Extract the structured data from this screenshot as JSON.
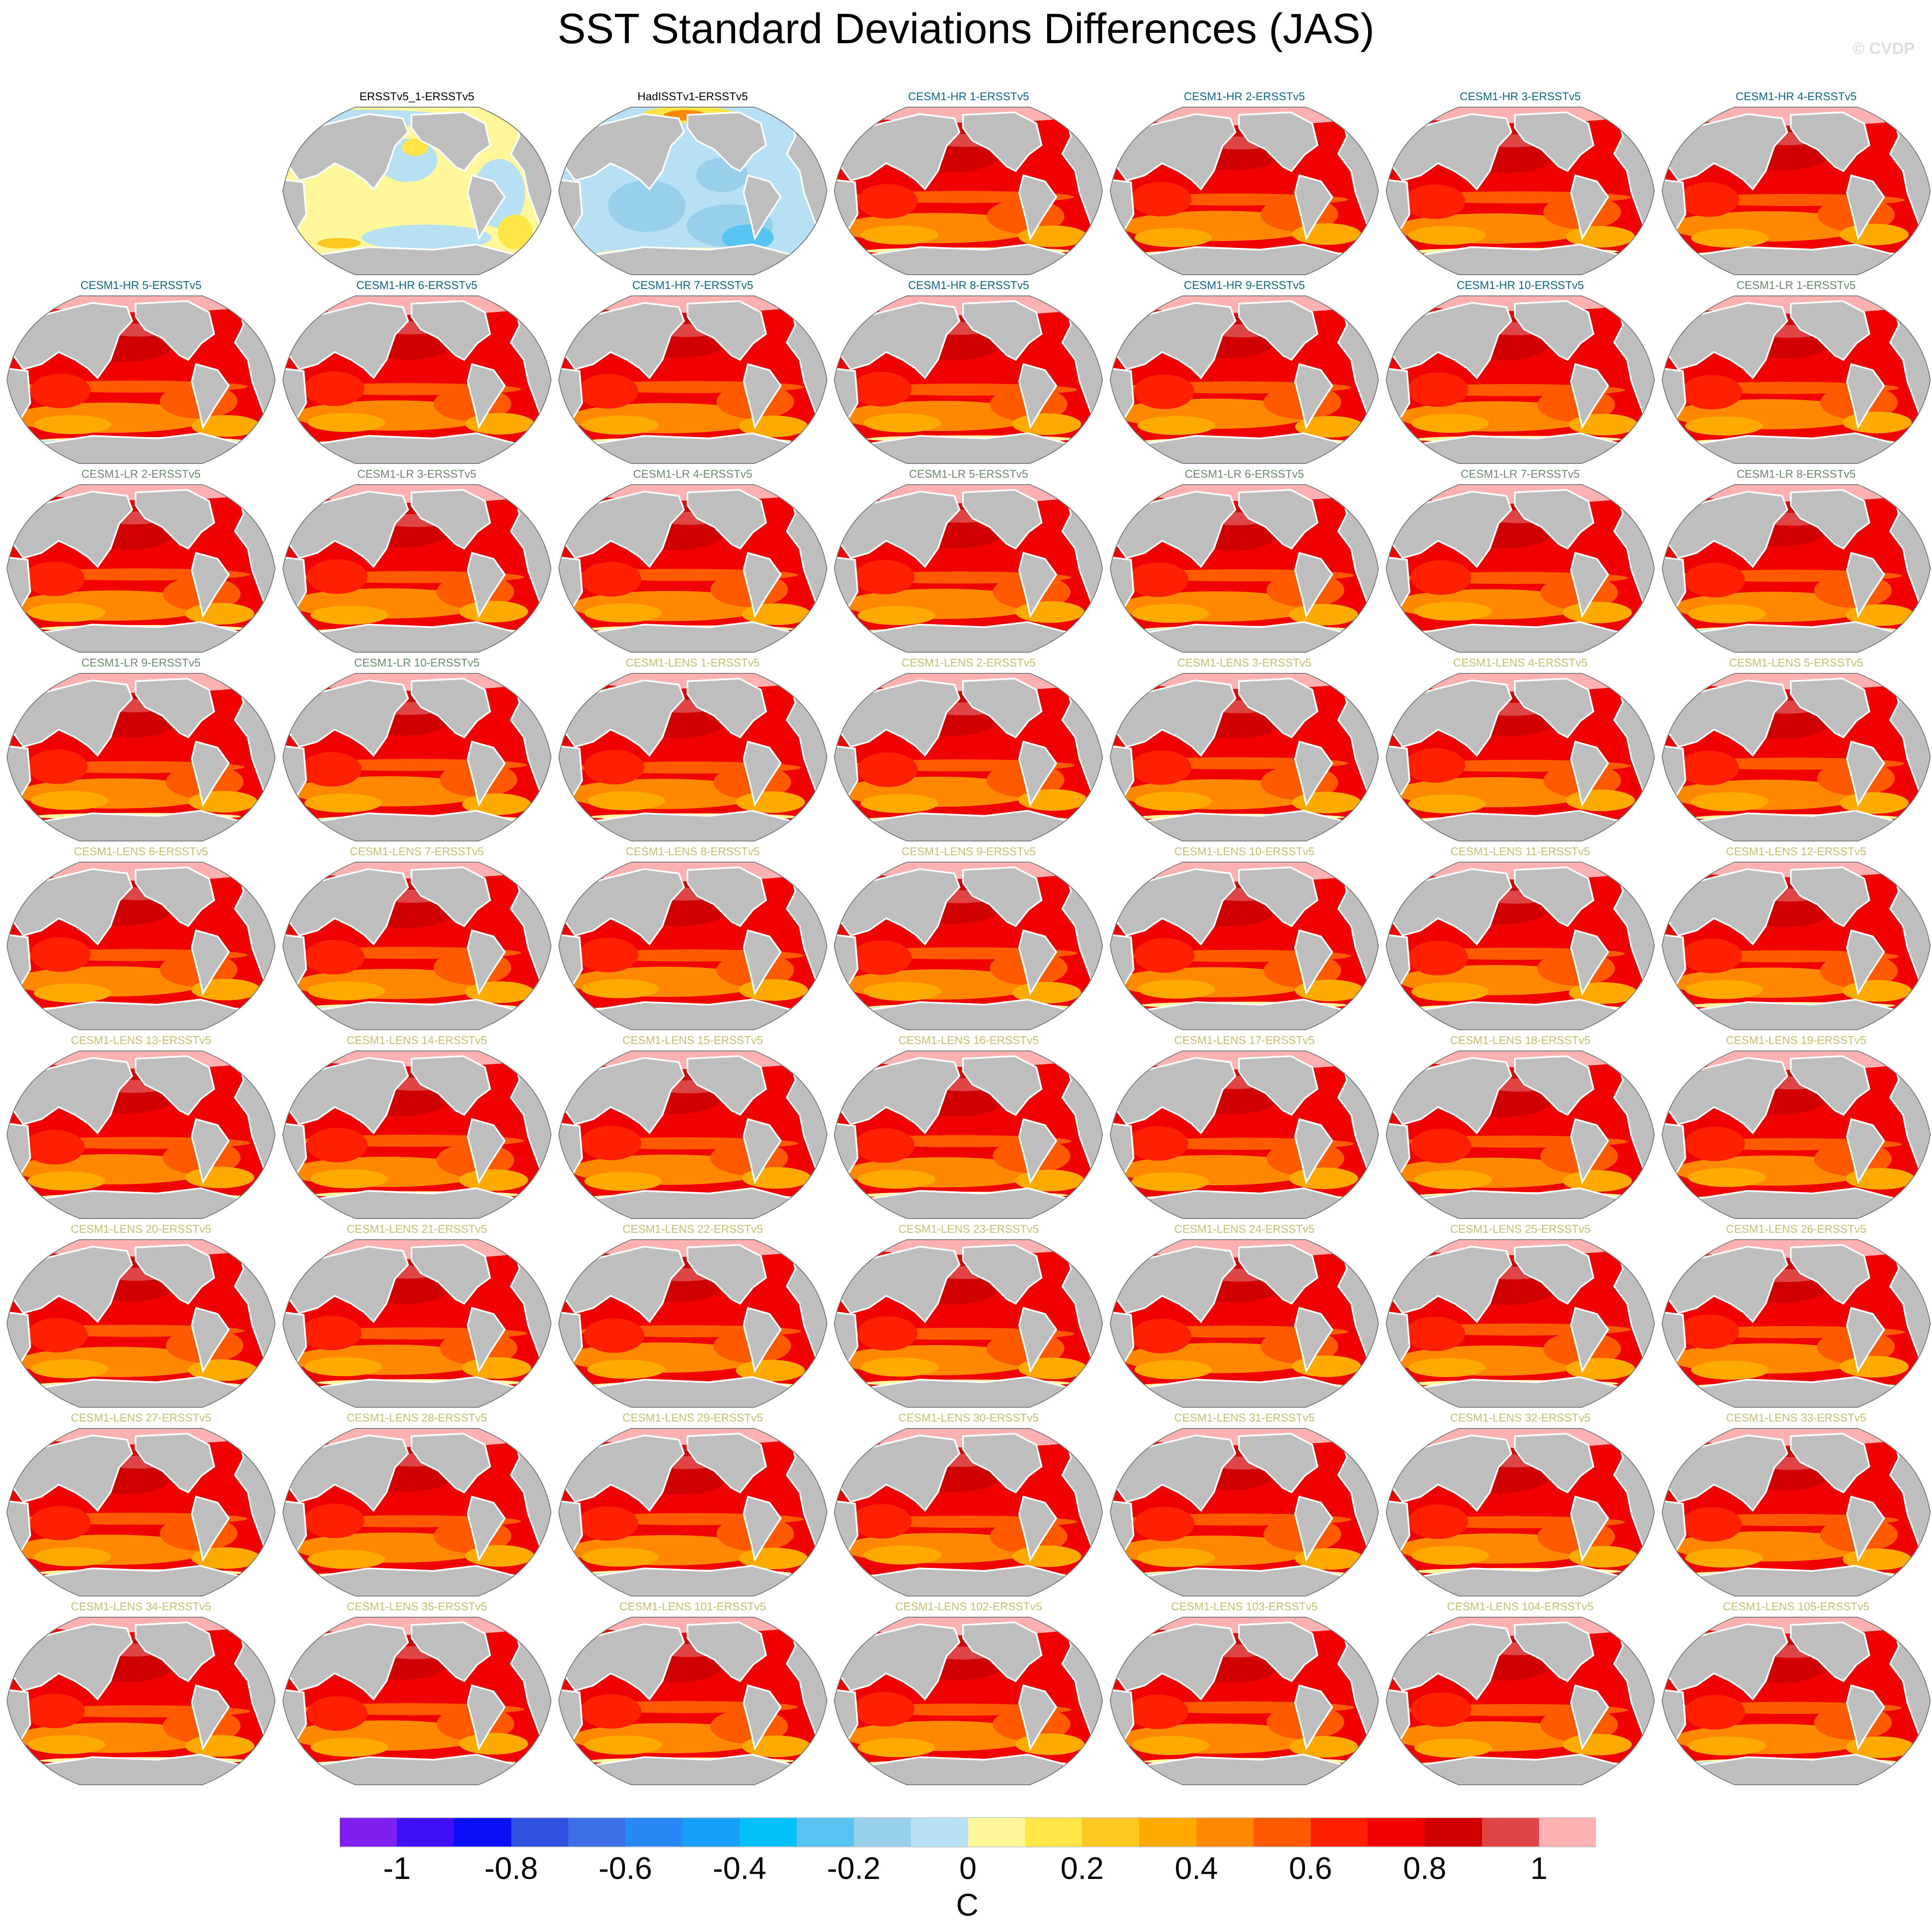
{
  "chart_data": {
    "type": "heatmap",
    "title": "SST Standard Deviations Differences (JAS)",
    "credit": "© CVDP",
    "layout": {
      "columns": 7,
      "rows": 9,
      "first_row_empty_slots": 1
    },
    "group_colors": {
      "obs": "#000000",
      "hr": "#0e6a8a",
      "lr": "#6a8f6a",
      "lens": "#c8c070"
    },
    "panels": [
      {
        "title": "ERSSTv5_1-ERSSTv5",
        "group": "obs",
        "pattern": "near-zero"
      },
      {
        "title": "HadISSTv1-ERSSTv5",
        "group": "obs",
        "pattern": "negative"
      },
      {
        "title": "CESM1-HR 1-ERSSTv5",
        "group": "hr",
        "pattern": "positive"
      },
      {
        "title": "CESM1-HR 2-ERSSTv5",
        "group": "hr",
        "pattern": "positive"
      },
      {
        "title": "CESM1-HR 3-ERSSTv5",
        "group": "hr",
        "pattern": "positive"
      },
      {
        "title": "CESM1-HR 4-ERSSTv5",
        "group": "hr",
        "pattern": "positive"
      },
      {
        "title": "CESM1-HR 5-ERSSTv5",
        "group": "hr",
        "pattern": "positive"
      },
      {
        "title": "CESM1-HR 6-ERSSTv5",
        "group": "hr",
        "pattern": "positive"
      },
      {
        "title": "CESM1-HR 7-ERSSTv5",
        "group": "hr",
        "pattern": "positive"
      },
      {
        "title": "CESM1-HR 8-ERSSTv5",
        "group": "hr",
        "pattern": "positive"
      },
      {
        "title": "CESM1-HR 9-ERSSTv5",
        "group": "hr",
        "pattern": "positive"
      },
      {
        "title": "CESM1-HR 10-ERSSTv5",
        "group": "hr",
        "pattern": "positive"
      },
      {
        "title": "CESM1-LR 1-ERSSTv5",
        "group": "lr",
        "pattern": "positive"
      },
      {
        "title": "CESM1-LR 2-ERSSTv5",
        "group": "lr",
        "pattern": "positive"
      },
      {
        "title": "CESM1-LR 3-ERSSTv5",
        "group": "lr",
        "pattern": "positive"
      },
      {
        "title": "CESM1-LR 4-ERSSTv5",
        "group": "lr",
        "pattern": "positive"
      },
      {
        "title": "CESM1-LR 5-ERSSTv5",
        "group": "lr",
        "pattern": "positive"
      },
      {
        "title": "CESM1-LR 6-ERSSTv5",
        "group": "lr",
        "pattern": "positive"
      },
      {
        "title": "CESM1-LR 7-ERSSTv5",
        "group": "lr",
        "pattern": "positive"
      },
      {
        "title": "CESM1-LR 8-ERSSTv5",
        "group": "lr",
        "pattern": "positive"
      },
      {
        "title": "CESM1-LR 9-ERSSTv5",
        "group": "lr",
        "pattern": "positive"
      },
      {
        "title": "CESM1-LR 10-ERSSTv5",
        "group": "lr",
        "pattern": "positive"
      },
      {
        "title": "CESM1-LENS 1-ERSSTv5",
        "group": "lens",
        "pattern": "positive"
      },
      {
        "title": "CESM1-LENS 2-ERSSTv5",
        "group": "lens",
        "pattern": "positive"
      },
      {
        "title": "CESM1-LENS 3-ERSSTv5",
        "group": "lens",
        "pattern": "positive"
      },
      {
        "title": "CESM1-LENS 4-ERSSTv5",
        "group": "lens",
        "pattern": "positive"
      },
      {
        "title": "CESM1-LENS 5-ERSSTv5",
        "group": "lens",
        "pattern": "positive"
      },
      {
        "title": "CESM1-LENS 6-ERSSTv5",
        "group": "lens",
        "pattern": "positive"
      },
      {
        "title": "CESM1-LENS 7-ERSSTv5",
        "group": "lens",
        "pattern": "positive"
      },
      {
        "title": "CESM1-LENS 8-ERSSTv5",
        "group": "lens",
        "pattern": "positive"
      },
      {
        "title": "CESM1-LENS 9-ERSSTv5",
        "group": "lens",
        "pattern": "positive"
      },
      {
        "title": "CESM1-LENS 10-ERSSTv5",
        "group": "lens",
        "pattern": "positive"
      },
      {
        "title": "CESM1-LENS 11-ERSSTv5",
        "group": "lens",
        "pattern": "positive"
      },
      {
        "title": "CESM1-LENS 12-ERSSTv5",
        "group": "lens",
        "pattern": "positive"
      },
      {
        "title": "CESM1-LENS 13-ERSSTv5",
        "group": "lens",
        "pattern": "positive"
      },
      {
        "title": "CESM1-LENS 14-ERSSTv5",
        "group": "lens",
        "pattern": "positive"
      },
      {
        "title": "CESM1-LENS 15-ERSSTv5",
        "group": "lens",
        "pattern": "positive"
      },
      {
        "title": "CESM1-LENS 16-ERSSTv5",
        "group": "lens",
        "pattern": "positive"
      },
      {
        "title": "CESM1-LENS 17-ERSSTv5",
        "group": "lens",
        "pattern": "positive"
      },
      {
        "title": "CESM1-LENS 18-ERSSTv5",
        "group": "lens",
        "pattern": "positive"
      },
      {
        "title": "CESM1-LENS 19-ERSSTv5",
        "group": "lens",
        "pattern": "positive"
      },
      {
        "title": "CESM1-LENS 20-ERSSTv5",
        "group": "lens",
        "pattern": "positive"
      },
      {
        "title": "CESM1-LENS 21-ERSSTv5",
        "group": "lens",
        "pattern": "positive"
      },
      {
        "title": "CESM1-LENS 22-ERSSTv5",
        "group": "lens",
        "pattern": "positive"
      },
      {
        "title": "CESM1-LENS 23-ERSSTv5",
        "group": "lens",
        "pattern": "positive"
      },
      {
        "title": "CESM1-LENS 24-ERSSTv5",
        "group": "lens",
        "pattern": "positive"
      },
      {
        "title": "CESM1-LENS 25-ERSSTv5",
        "group": "lens",
        "pattern": "positive"
      },
      {
        "title": "CESM1-LENS 26-ERSSTv5",
        "group": "lens",
        "pattern": "positive"
      },
      {
        "title": "CESM1-LENS 27-ERSSTv5",
        "group": "lens",
        "pattern": "positive"
      },
      {
        "title": "CESM1-LENS 28-ERSSTv5",
        "group": "lens",
        "pattern": "positive"
      },
      {
        "title": "CESM1-LENS 29-ERSSTv5",
        "group": "lens",
        "pattern": "positive"
      },
      {
        "title": "CESM1-LENS 30-ERSSTv5",
        "group": "lens",
        "pattern": "positive"
      },
      {
        "title": "CESM1-LENS 31-ERSSTv5",
        "group": "lens",
        "pattern": "positive"
      },
      {
        "title": "CESM1-LENS 32-ERSSTv5",
        "group": "lens",
        "pattern": "positive"
      },
      {
        "title": "CESM1-LENS 33-ERSSTv5",
        "group": "lens",
        "pattern": "positive"
      },
      {
        "title": "CESM1-LENS 34-ERSSTv5",
        "group": "lens",
        "pattern": "positive"
      },
      {
        "title": "CESM1-LENS 35-ERSSTv5",
        "group": "lens",
        "pattern": "positive"
      },
      {
        "title": "CESM1-LENS 101-ERSSTv5",
        "group": "lens",
        "pattern": "positive"
      },
      {
        "title": "CESM1-LENS 102-ERSSTv5",
        "group": "lens",
        "pattern": "positive"
      },
      {
        "title": "CESM1-LENS 103-ERSSTv5",
        "group": "lens",
        "pattern": "positive"
      },
      {
        "title": "CESM1-LENS 104-ERSSTv5",
        "group": "lens",
        "pattern": "positive"
      },
      {
        "title": "CESM1-LENS 105-ERSSTv5",
        "group": "lens",
        "pattern": "positive"
      }
    ],
    "colorbar": {
      "units": "C",
      "range": [
        -1.1,
        1.1
      ],
      "step": 0.1,
      "colors": [
        "#8020f0",
        "#4010f8",
        "#0c10f8",
        "#3050e0",
        "#3a70e4",
        "#2888f8",
        "#18a0f8",
        "#00c0f8",
        "#58c4f4",
        "#98d0ec",
        "#b8e0f5",
        "#fff799",
        "#ffe545",
        "#ffc820",
        "#ffaa00",
        "#ff8800",
        "#ff5a00",
        "#ff2000",
        "#f00000",
        "#d00000",
        "#e04545",
        "#ffb0b0"
      ],
      "tick_values": [
        -1,
        -0.8,
        -0.6,
        -0.4,
        -0.2,
        0,
        0.2,
        0.4,
        0.6,
        0.8,
        1
      ],
      "tick_labels": [
        "-1",
        "-0.8",
        "-0.6",
        "-0.4",
        "-0.2",
        "0",
        "0.2",
        "0.4",
        "0.6",
        "0.8",
        "1"
      ]
    }
  }
}
